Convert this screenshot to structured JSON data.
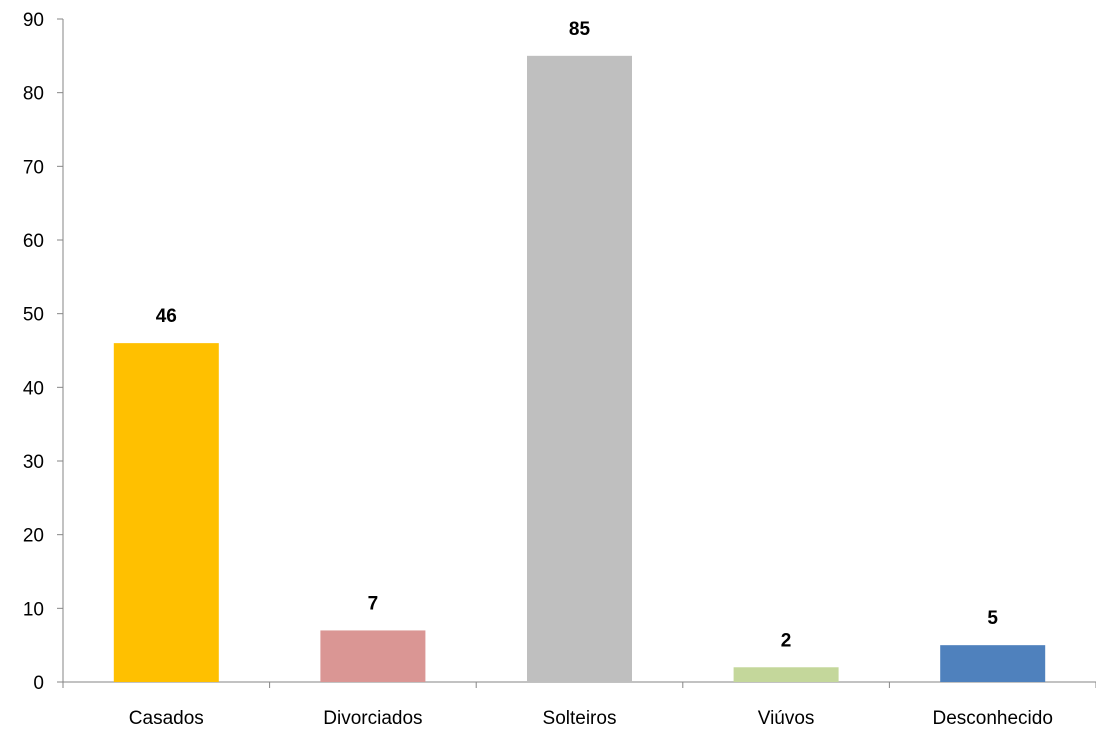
{
  "chart_data": {
    "type": "bar",
    "title": "",
    "xlabel": "",
    "ylabel": "",
    "categories": [
      "Casados",
      "Divorciados",
      "Solteiros",
      "Viúvos",
      "Desconhecido"
    ],
    "values": [
      46,
      7,
      85,
      2,
      5
    ],
    "colors": [
      "#FFC000",
      "#DA9694",
      "#BFBFBF",
      "#C4D79B",
      "#4F81BD"
    ],
    "ylim": [
      0,
      90
    ],
    "yticks": [
      0,
      10,
      20,
      30,
      40,
      50,
      60,
      70,
      80,
      90
    ],
    "data_labels": [
      "46",
      "7",
      "85",
      "2",
      "5"
    ],
    "grid": false,
    "legend": "none"
  }
}
